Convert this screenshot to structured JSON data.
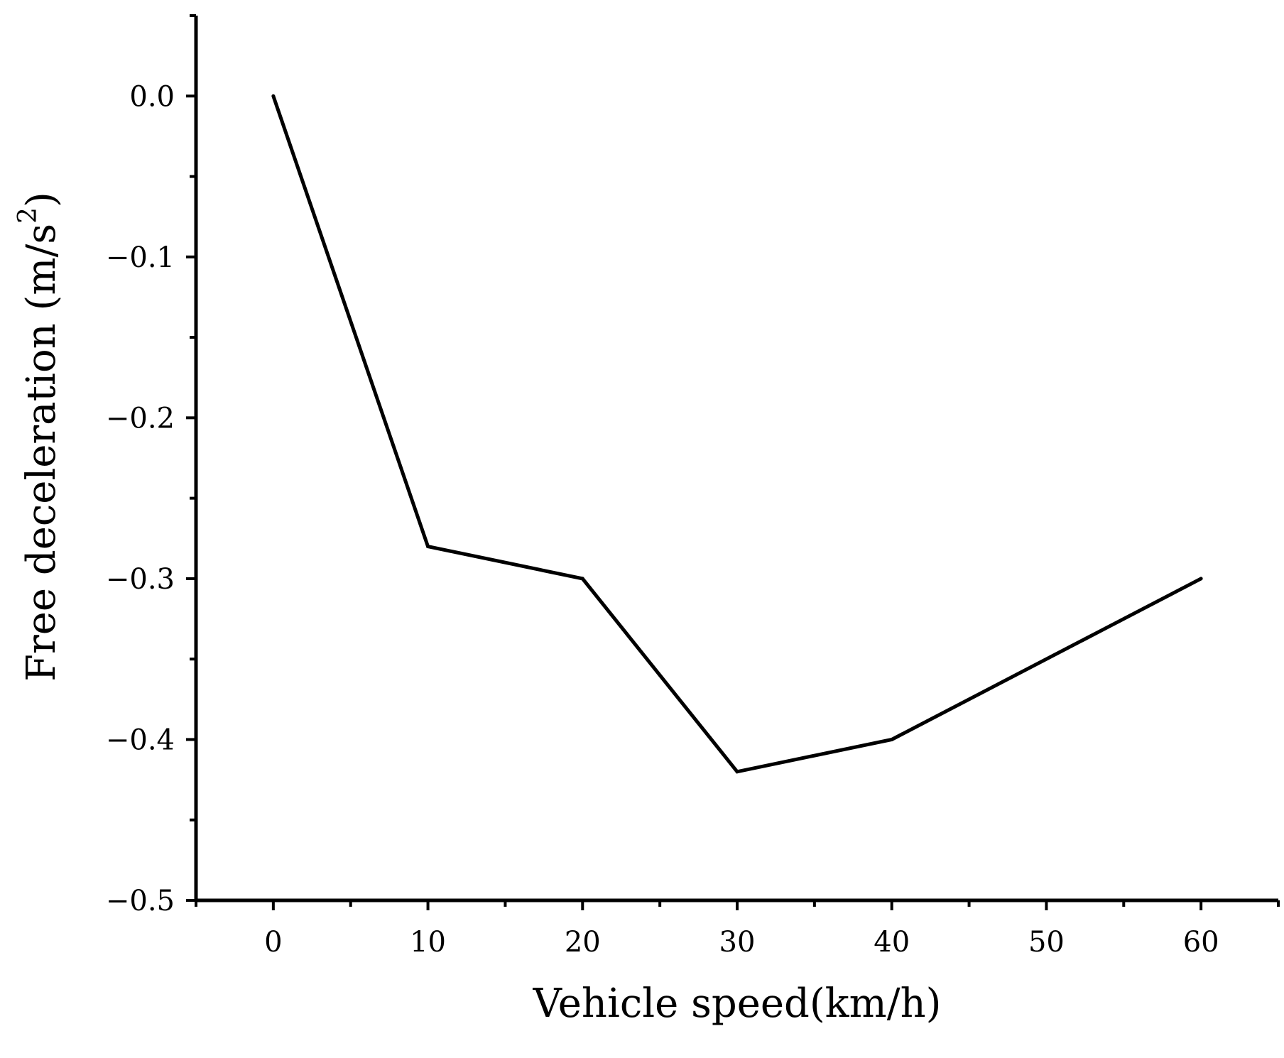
{
  "chart_data": {
    "type": "line",
    "xlabel": "Vehicle speed(km/h)",
    "ylabel_main": "Free deceleration (m/s",
    "ylabel_sup": "2",
    "ylabel_close": ")",
    "xlim": [
      -5,
      65
    ],
    "ylim": [
      -0.5,
      0.05
    ],
    "x_ticks": [
      0,
      10,
      20,
      30,
      40,
      50,
      60
    ],
    "x_tick_labels": [
      "0",
      "10",
      "20",
      "30",
      "40",
      "50",
      "60"
    ],
    "x_minor_ticks": [
      -5,
      5,
      15,
      25,
      35,
      45,
      55,
      65
    ],
    "y_ticks": [
      0.0,
      -0.1,
      -0.2,
      -0.3,
      -0.4,
      -0.5
    ],
    "y_tick_labels": [
      "0.0",
      "−0.1",
      "−0.2",
      "−0.3",
      "−0.4",
      "−0.5"
    ],
    "y_minor_ticks": [
      0.05,
      -0.05,
      -0.15,
      -0.25,
      -0.35,
      -0.45
    ],
    "grid": false,
    "series": [
      {
        "x": [
          0,
          10,
          20,
          30,
          40,
          60
        ],
        "y": [
          0.0,
          -0.28,
          -0.3,
          -0.42,
          -0.4,
          -0.3
        ],
        "color": "#000000"
      }
    ]
  }
}
